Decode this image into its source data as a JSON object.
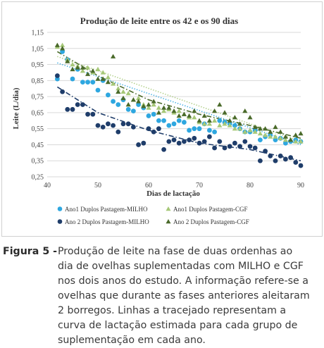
{
  "chart_data": {
    "type": "scatter",
    "title": "Produção de leite entre os 42 e os 90 dias",
    "xlabel": "Dias de lactação",
    "ylabel": "Leite (L/dia)",
    "xlim": [
      40,
      90
    ],
    "ylim": [
      0.25,
      1.15
    ],
    "xticks": [
      "40",
      "50",
      "60",
      "70",
      "80",
      "90"
    ],
    "yticks": [
      "0,25",
      "0,35",
      "0,45",
      "0,55",
      "0,65",
      "0,75",
      "0,85",
      "0,95",
      "1,05",
      "1,15"
    ],
    "grid": true,
    "legend_position": "bottom",
    "series": [
      {
        "name": "Ano1 Duplos Pastagem-MILHO",
        "color": "#2ea7e0",
        "marker": "circle",
        "trend": "dotted",
        "trend_points": [
          [
            42,
            0.96
          ],
          [
            90,
            0.45
          ]
        ],
        "x": [
          42,
          43,
          44,
          45,
          46,
          47,
          48,
          49,
          50,
          51,
          52,
          53,
          54,
          55,
          56,
          57,
          58,
          59,
          60,
          61,
          62,
          63,
          64,
          65,
          66,
          67,
          68,
          69,
          70,
          71,
          72,
          73,
          74,
          75,
          76,
          77,
          78,
          79,
          80,
          81,
          82,
          83,
          84,
          85,
          86,
          87,
          88,
          89,
          90
        ],
        "y": [
          0.86,
          1.03,
          0.98,
          0.86,
          0.92,
          0.84,
          0.84,
          0.84,
          0.79,
          0.85,
          0.76,
          0.72,
          0.7,
          0.73,
          0.67,
          0.66,
          0.7,
          0.68,
          0.63,
          0.64,
          0.6,
          0.6,
          0.57,
          0.58,
          0.6,
          0.59,
          0.54,
          0.55,
          0.55,
          0.58,
          0.54,
          0.53,
          0.6,
          0.59,
          0.58,
          0.57,
          0.55,
          0.53,
          0.53,
          0.54,
          0.48,
          0.5,
          0.51,
          0.48,
          0.49,
          0.46,
          0.47,
          0.48,
          0.47
        ]
      },
      {
        "name": "Ano1 Duplos Pastagem-CGF",
        "color": "#a6c878",
        "marker": "triangle",
        "trend": "dotted",
        "trend_points": [
          [
            42,
            1.0
          ],
          [
            90,
            0.47
          ]
        ],
        "x": [
          42,
          43,
          44,
          45,
          46,
          47,
          48,
          49,
          50,
          51,
          52,
          53,
          54,
          55,
          56,
          57,
          58,
          59,
          60,
          61,
          62,
          63,
          64,
          65,
          66,
          67,
          68,
          69,
          70,
          71,
          72,
          73,
          74,
          75,
          76,
          77,
          78,
          79,
          80,
          81,
          82,
          83,
          84,
          85,
          86,
          87,
          88,
          89,
          90
        ],
        "y": [
          1.06,
          1.07,
          0.98,
          0.95,
          0.94,
          0.91,
          0.93,
          0.9,
          0.92,
          0.9,
          0.87,
          0.83,
          0.8,
          0.78,
          0.77,
          0.73,
          0.74,
          0.7,
          0.68,
          0.7,
          0.68,
          0.66,
          0.67,
          0.65,
          0.66,
          0.64,
          0.62,
          0.62,
          0.59,
          0.58,
          0.58,
          0.6,
          0.57,
          0.58,
          0.57,
          0.55,
          0.55,
          0.53,
          0.54,
          0.53,
          0.52,
          0.51,
          0.5,
          0.5,
          0.49,
          0.48,
          0.48,
          0.47,
          0.47
        ]
      },
      {
        "name": "Ano 2 Duplos Pastagem-MILHO",
        "color": "#1f3d6a",
        "marker": "circle",
        "trend": "dashdot",
        "trend_points": [
          [
            42,
            0.81
          ],
          [
            50,
            0.65
          ],
          [
            60,
            0.54
          ],
          [
            70,
            0.46
          ],
          [
            80,
            0.42
          ],
          [
            90,
            0.35
          ]
        ],
        "x": [
          42,
          43,
          44,
          45,
          46,
          47,
          48,
          49,
          50,
          51,
          52,
          53,
          54,
          55,
          56,
          57,
          58,
          59,
          60,
          61,
          62,
          63,
          64,
          65,
          66,
          67,
          68,
          69,
          70,
          71,
          72,
          73,
          74,
          75,
          76,
          77,
          78,
          79,
          80,
          81,
          82,
          83,
          84,
          85,
          86,
          87,
          88,
          89,
          90
        ],
        "y": [
          0.88,
          0.78,
          0.67,
          0.67,
          0.7,
          0.7,
          0.64,
          0.64,
          0.57,
          0.56,
          0.58,
          0.57,
          0.53,
          0.58,
          0.58,
          0.56,
          0.45,
          0.46,
          0.55,
          0.53,
          0.55,
          0.42,
          0.47,
          0.48,
          0.46,
          0.47,
          0.48,
          0.49,
          0.46,
          0.47,
          0.5,
          0.43,
          0.47,
          0.43,
          0.44,
          0.46,
          0.44,
          0.47,
          0.44,
          0.43,
          0.35,
          0.41,
          0.38,
          0.35,
          0.38,
          0.36,
          0.37,
          0.34,
          0.32
        ]
      },
      {
        "name": "Ano 2 Duplos Pastagem-CGF",
        "color": "#4a6a2a",
        "marker": "triangle",
        "trend": "dashdot",
        "trend_points": [
          [
            42,
            1.03
          ],
          [
            50,
            0.88
          ],
          [
            60,
            0.73
          ],
          [
            70,
            0.64
          ],
          [
            80,
            0.57
          ],
          [
            90,
            0.49
          ]
        ],
        "x": [
          42,
          43,
          44,
          45,
          46,
          47,
          48,
          49,
          50,
          51,
          52,
          53,
          54,
          55,
          56,
          57,
          58,
          59,
          60,
          61,
          62,
          63,
          64,
          65,
          66,
          67,
          68,
          69,
          70,
          71,
          72,
          73,
          74,
          75,
          76,
          77,
          78,
          79,
          80,
          81,
          82,
          83,
          84,
          85,
          86,
          87,
          88,
          89,
          90
        ],
        "y": [
          1.07,
          1.05,
          0.97,
          0.92,
          0.93,
          0.93,
          0.89,
          0.91,
          0.86,
          0.86,
          0.84,
          1.0,
          0.78,
          0.74,
          0.7,
          0.73,
          0.72,
          0.69,
          0.7,
          0.72,
          0.65,
          0.68,
          0.68,
          0.66,
          0.63,
          0.64,
          0.63,
          0.66,
          0.6,
          0.63,
          0.6,
          0.66,
          0.7,
          0.65,
          0.6,
          0.62,
          0.58,
          0.66,
          0.62,
          0.56,
          0.55,
          0.55,
          0.53,
          0.56,
          0.53,
          0.5,
          0.48,
          0.51,
          0.52
        ]
      }
    ]
  },
  "caption": {
    "label": "Figura 5 -",
    "lines": [
      "Produção de leite na fase de duas ordenhas ao",
      "dia de ovelhas suplementadas com MILHO e CGF",
      "nos dois anos do estudo. A informação refere-se a",
      "ovelhas que durante as fases anteriores aleitaram",
      "2 borregos. Linhas a tracejado representam a",
      "curva de lactação estimada para cada grupo de",
      "suplementação em cada ano."
    ]
  }
}
